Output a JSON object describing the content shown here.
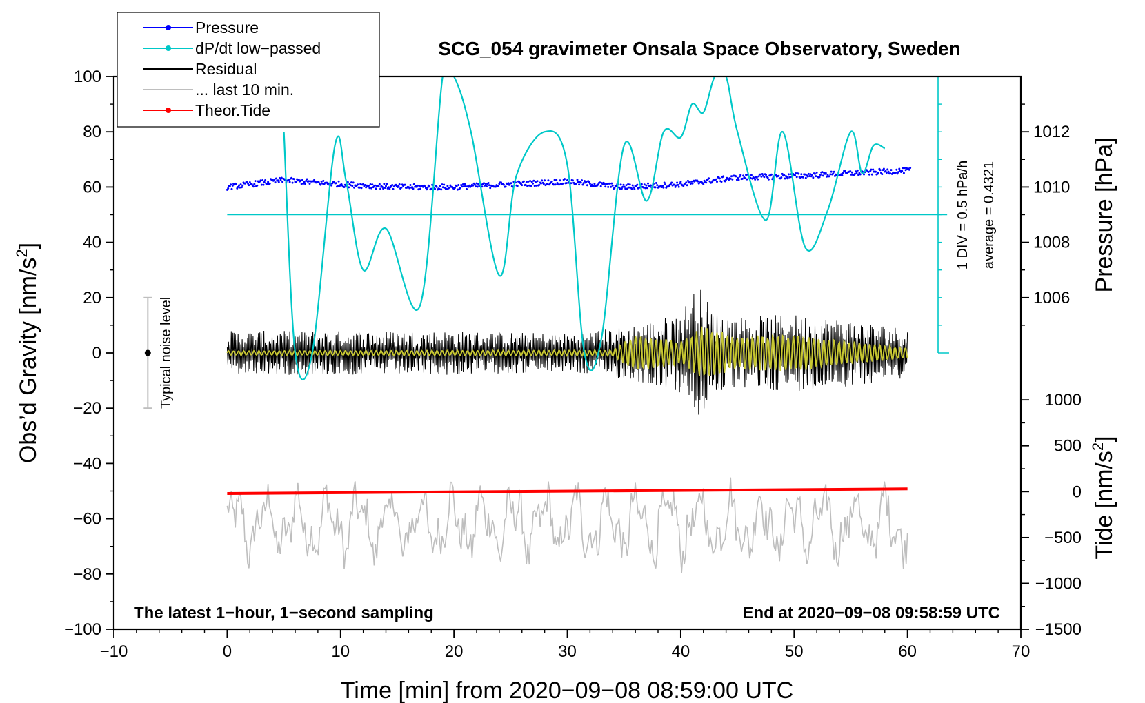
{
  "chart_data": {
    "type": "line",
    "title": "SCG_054 gravimeter Onsala Space Observatory, Sweden",
    "xlabel": "Time [min] from 2020−09−08 08:59:00 UTC",
    "ylabel_left_main": "Obs’d Gravity [nm/s",
    "ylabel_left_sup": "2",
    "ylabel_left_close": "]",
    "ylabel_right_pressure": "Pressure [hPa]",
    "ylabel_right_tide_main": "Tide [nm/s",
    "ylabel_right_tide_sup": "2",
    "ylabel_right_tide_close": "]",
    "xlim": [
      -10,
      70
    ],
    "ylim": [
      -100,
      100
    ],
    "x_ticks": [
      -10,
      0,
      10,
      20,
      30,
      40,
      50,
      60,
      70
    ],
    "x_tick_labels": [
      "−10",
      "0",
      "10",
      "20",
      "30",
      "40",
      "50",
      "60",
      "70"
    ],
    "y_ticks": [
      -100,
      -80,
      -60,
      -40,
      -20,
      0,
      20,
      40,
      60,
      80,
      100
    ],
    "y_tick_labels": [
      "−100",
      "−80",
      "−60",
      "−40",
      "−20",
      "0",
      "20",
      "40",
      "60",
      "80",
      "100"
    ],
    "pressure_axis": {
      "ticks": [
        1006,
        1008,
        1010,
        1012
      ],
      "tick_labels": [
        "1006",
        "1008",
        "1010",
        "1012"
      ],
      "maps_to_gravity": [
        [
          1006,
          20
        ],
        [
          1012,
          80
        ]
      ]
    },
    "tide_axis": {
      "ticks": [
        1000,
        500,
        0,
        -500,
        -1000,
        -1500
      ],
      "tick_labels": [
        "1000",
        "500",
        "0",
        "−500",
        "−1000",
        "−1500"
      ],
      "maps_to_gravity": [
        [
          1000,
          -17
        ],
        [
          -1500,
          -100
        ]
      ]
    },
    "legend": {
      "placement": "top-left",
      "entries": [
        {
          "label": "Pressure",
          "color": "#0000ff",
          "marker": true
        },
        {
          "label": "dP/dt low−passed",
          "color": "#00c8c8",
          "marker": true
        },
        {
          "label": "Residual",
          "color": "#000000",
          "marker": false
        },
        {
          "label": "... last 10 min.",
          "color": "#bebebe",
          "marker": false
        },
        {
          "label": "Theor.Tide",
          "color": "#ff0000",
          "marker": true
        }
      ]
    },
    "annotations": {
      "noise_label": "Typical noise level",
      "noise_bar_range": [
        -20,
        20
      ],
      "noise_bar_x": -7,
      "dpdt_scale": "1 DIV = 0.5 hPa/h",
      "dpdt_average": "average = 0.4321",
      "bottom_left": "The latest 1−hour, 1−second sampling",
      "bottom_right": "End at 2020−09−08 09:58:59 UTC"
    },
    "colors": {
      "pressure": "#0000ff",
      "dpdt": "#00c8c8",
      "residual": "#000000",
      "last10": "#bebebe",
      "tide": "#ff0000",
      "filtered": "#c8c832"
    },
    "series": [
      {
        "name": "Pressure",
        "unit": "hPa",
        "x": [
          0,
          5,
          10,
          15,
          20,
          25,
          30,
          35,
          40,
          45,
          50,
          55,
          60
        ],
        "values": [
          1010.0,
          1010.25,
          1010.1,
          1010.0,
          1010.0,
          1010.1,
          1010.2,
          1010.0,
          1010.1,
          1010.35,
          1010.4,
          1010.5,
          1010.6
        ]
      },
      {
        "name": "dP/dt low-passed",
        "unit": "nm/s2 axis",
        "x": [
          5,
          6,
          7.5,
          9.5,
          10.5,
          12,
          14,
          17,
          19,
          20,
          21.5,
          24,
          25.5,
          28,
          30,
          31.5,
          33,
          35,
          37,
          38.5,
          40,
          41,
          42,
          43,
          44,
          45,
          47.5,
          49,
          51,
          53,
          55,
          56,
          57,
          58
        ],
        "values": [
          80,
          0,
          0,
          75,
          62,
          30,
          45,
          17,
          100,
          100,
          80,
          28,
          64,
          80,
          68,
          0,
          5,
          75,
          55,
          80,
          78,
          90,
          87,
          100,
          100,
          80,
          48,
          80,
          38,
          52,
          80,
          65,
          75,
          74
        ]
      },
      {
        "name": "Residual",
        "unit": "nm/s2",
        "x": [
          0,
          10,
          20,
          30,
          34,
          38,
          40,
          41.5,
          43,
          45,
          50,
          55,
          60
        ],
        "envelope": [
          8,
          8,
          8,
          7,
          9,
          12,
          15,
          25,
          15,
          13,
          14,
          12,
          9
        ]
      },
      {
        "name": "Filtered residual",
        "unit": "nm/s2",
        "x": [
          0,
          34,
          36,
          40,
          42,
          45,
          50,
          55,
          60
        ],
        "envelope": [
          0.8,
          1,
          7,
          4,
          10,
          6,
          7,
          4,
          2
        ]
      },
      {
        "name": "... last 10 min.",
        "unit": "nm/s2",
        "x_range": [
          0,
          60
        ],
        "center": -62,
        "min": -84,
        "max": -37
      },
      {
        "name": "Theor.Tide",
        "unit": "nm/s2",
        "x": [
          0,
          60
        ],
        "values": [
          -20,
          30
        ]
      }
    ]
  }
}
